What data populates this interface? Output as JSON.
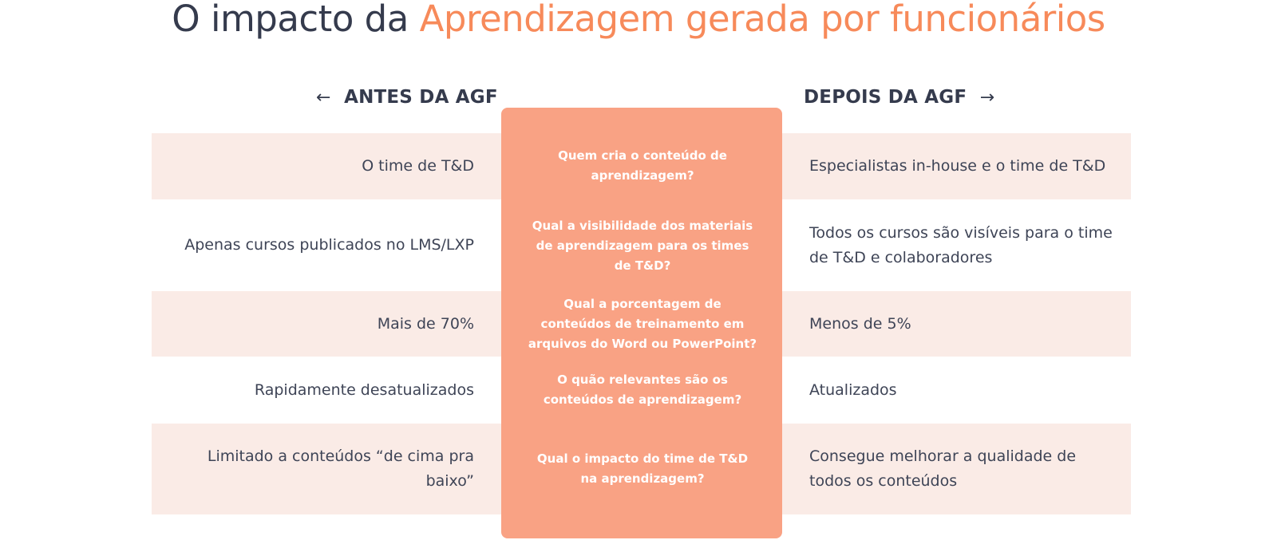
{
  "title": {
    "prefix": "O impacto da",
    "accent": "Aprendizagem gerada por funcionários"
  },
  "columns": {
    "before": {
      "arrow": "←",
      "label": "ANTES DA AGF"
    },
    "after": {
      "label": "DEPOIS DA AGF",
      "arrow": "→"
    }
  },
  "rows": [
    {
      "before": "O time de T&D",
      "question": "Quem cria o conteúdo de aprendizagem?",
      "after": "Especialistas in-house e o time de T&D"
    },
    {
      "before": "Apenas cursos publicados no LMS/LXP",
      "question": "Qual a visibilidade dos materiais de aprendizagem para os times de T&D?",
      "after": "Todos os cursos são visíveis para o time de T&D e colaboradores"
    },
    {
      "before": "Mais de 70%",
      "question": "Qual a porcentagem de conteúdos de treinamento em arquivos do Word ou PowerPoint?",
      "after": "Menos de 5%"
    },
    {
      "before": "Rapidamente desatualizados",
      "question": "O quão relevantes são os conteúdos de aprendizagem?",
      "after": "Atualizados"
    },
    {
      "before": "Limitado a conteúdos “de cima pra baixo”",
      "question": "Qual o impacto do time de T&D na aprendizagem?",
      "after": "Consegue melhorar a qualidade de todos os conteúdos"
    }
  ],
  "colors": {
    "text_dark": "#353b4d",
    "accent": "#f78a5a",
    "panel": "#f9a284",
    "band": "#faebe6"
  }
}
